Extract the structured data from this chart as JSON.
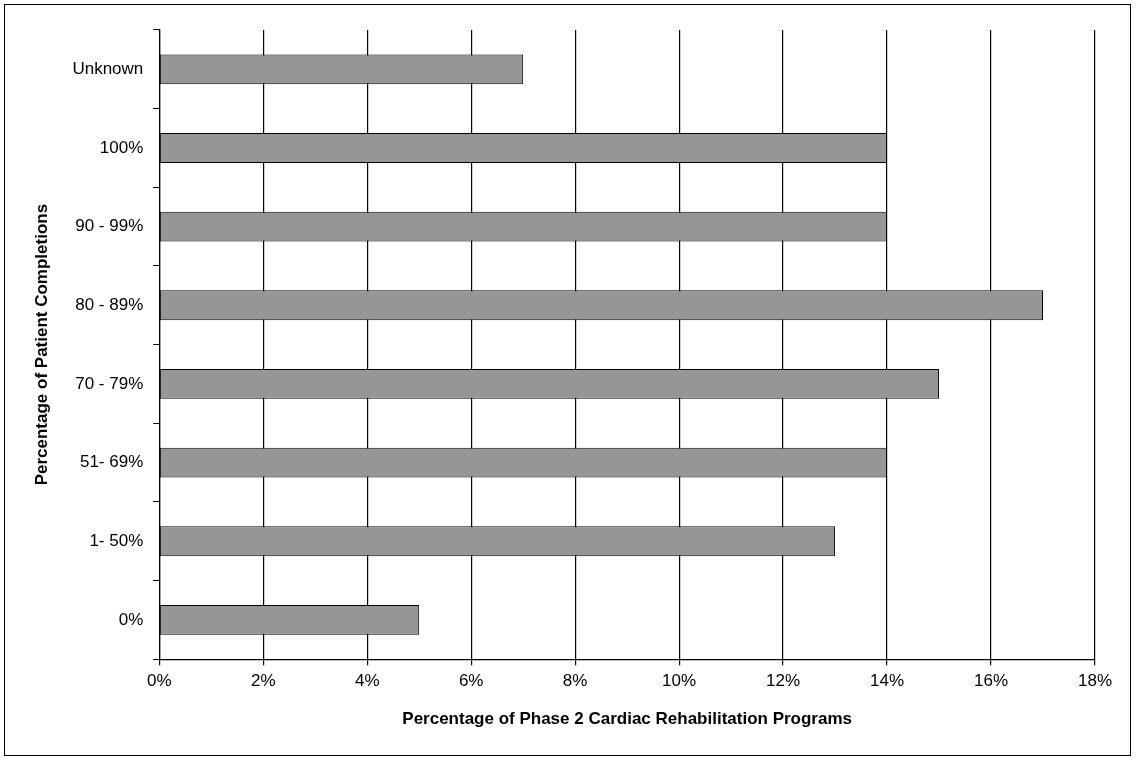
{
  "chart_data": {
    "type": "bar",
    "orientation": "horizontal",
    "categories": [
      "Unknown",
      "100%",
      "90 - 99%",
      "80 - 89%",
      "70 - 79%",
      "51- 69%",
      "1- 50%",
      "0%"
    ],
    "values": [
      7,
      14,
      14,
      17,
      15,
      14,
      13,
      5
    ],
    "color": "#969696",
    "xlabel": "Percentage of Phase 2 Cardiac Rehabilitation Programs",
    "ylabel": "Percentage of Patient Completions",
    "xlim": [
      0,
      18
    ],
    "xticks": [
      {
        "value": 0,
        "label": "0%"
      },
      {
        "value": 2,
        "label": "2%"
      },
      {
        "value": 4,
        "label": "4%"
      },
      {
        "value": 6,
        "label": "6%"
      },
      {
        "value": 8,
        "label": "8%"
      },
      {
        "value": 10,
        "label": "10%"
      },
      {
        "value": 12,
        "label": "12%"
      },
      {
        "value": 14,
        "label": "14%"
      },
      {
        "value": 16,
        "label": "16%"
      },
      {
        "value": 18,
        "label": "18%"
      }
    ],
    "grid": "x",
    "legend": false
  }
}
